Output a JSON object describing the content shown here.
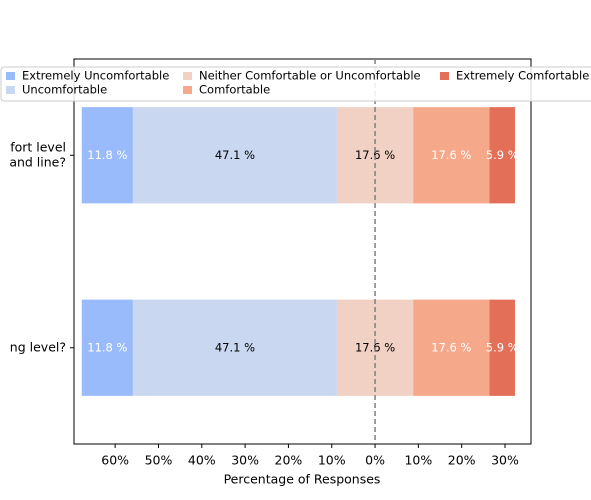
{
  "chart_data": {
    "type": "diverging_bar",
    "categories": [
      [
        "fort level",
        "and line?"
      ],
      [
        "ng level?"
      ]
    ],
    "series": [
      {
        "name": "Extremely Uncomfortable",
        "color": "#9abbfb",
        "label_color": "#ffffff",
        "values": [
          11.8,
          11.8
        ],
        "value_labels": [
          "11.8 %",
          "11.8 %"
        ]
      },
      {
        "name": "Uncomfortable",
        "color": "#c9d7f0",
        "label_color": "#000000",
        "values": [
          47.1,
          47.1
        ],
        "value_labels": [
          "47.1 %",
          "47.1 %"
        ]
      },
      {
        "name": "Neither Comfortable or Uncomfortable",
        "color": "#f0d1c3",
        "label_color": "#000000",
        "values": [
          17.6,
          17.6
        ],
        "value_labels": [
          "17.6 %",
          "17.6 %"
        ]
      },
      {
        "name": "Comfortable",
        "color": "#f5a98a",
        "label_color": "#ffffff",
        "values": [
          17.6,
          17.6
        ],
        "value_labels": [
          "17.6 %",
          "17.6 %"
        ]
      },
      {
        "name": "Extremely Comfortable",
        "color": "#e36f58",
        "label_color": "#ffffff",
        "values": [
          5.9,
          5.9
        ],
        "value_labels": [
          "5.9 %",
          "5.9 %"
        ]
      }
    ],
    "xlabel": "Percentage of Responses",
    "xlim": [
      -69.5,
      36
    ],
    "xticks": [
      {
        "value": -60,
        "label": "60%"
      },
      {
        "value": -50,
        "label": "50%"
      },
      {
        "value": -40,
        "label": "40%"
      },
      {
        "value": -30,
        "label": "30%"
      },
      {
        "value": -20,
        "label": "20%"
      },
      {
        "value": -10,
        "label": "10%"
      },
      {
        "value": 0,
        "label": "0%"
      },
      {
        "value": 10,
        "label": "10%"
      },
      {
        "value": 20,
        "label": "20%"
      },
      {
        "value": 30,
        "label": "30%"
      }
    ],
    "zero_line": true
  }
}
